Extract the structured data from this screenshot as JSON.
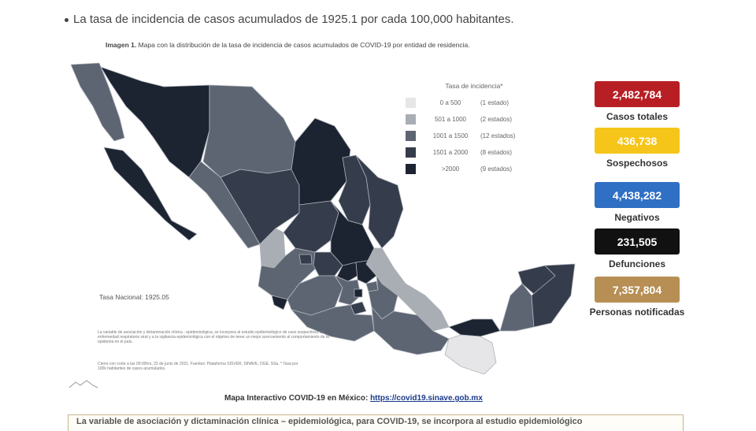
{
  "intro_text": "La tasa de incidencia de casos acumulados de 1925.1 por cada 100,000 habitantes.",
  "caption": {
    "label": "Imagen 1.",
    "text": "Mapa con la distribución de la tasa de incidencia de casos acumulados de COVID-19 por entidad de residencia."
  },
  "legend": {
    "title": "Tasa de incidencia*",
    "rows": [
      {
        "range": "0 a 500",
        "count": "(1 estado)",
        "color": "#e6e6e8"
      },
      {
        "range": "501 a 1000",
        "count": "(2 estados)",
        "color": "#a9adb4"
      },
      {
        "range": "1001 a 1500",
        "count": "(12 estados)",
        "color": "#5d6573"
      },
      {
        "range": "1501 a 2000",
        "count": "(8 estados)",
        "color": "#353c4b"
      },
      {
        "range": ">2000",
        "count": "(9 estados)",
        "color": "#1d2431"
      }
    ]
  },
  "stats": [
    {
      "value": "2,482,784",
      "label": "Casos totales",
      "color": "#b81f24"
    },
    {
      "value": "436,738",
      "label": "Sospechosos",
      "color": "#f6c51a"
    },
    {
      "value": "4,438,282",
      "label": "Negativos",
      "color": "#2f6fc4"
    },
    {
      "value": "231,505",
      "label": "Defunciones",
      "color": "#111111"
    },
    {
      "value": "7,357,804",
      "label": "Personas notificadas",
      "color": "#b78f55"
    }
  ],
  "national_rate": "Tasa Nacional: 1925.05",
  "notes_text": "La variable de asociación y dictaminación clínica - epidemiológica, se incorpora al estudio epidemiológico de caso sospechoso de enfermedad respiratoria viral y a la vigilancia epidemiológica con el objetivo de tener un mejor acercamiento al comportamiento de la epidemia en el país.",
  "cut_text": "Cierre con corte a las 09:00hrs, 22 de junio de 2021. Fuentes: Plataforma SISVER, SINAVE, DGE, SSa. * Tasa por 100k habitantes de casos acumulados.",
  "link_label": "Mapa Interactivo COVID-19 en México:",
  "link_url": "https://covid19.sinave.gob.mx",
  "bottom_text": "La variable de asociación y dictaminación clínica – epidemiológica, para COVID-19, se incorpora al estudio epidemiológico"
}
